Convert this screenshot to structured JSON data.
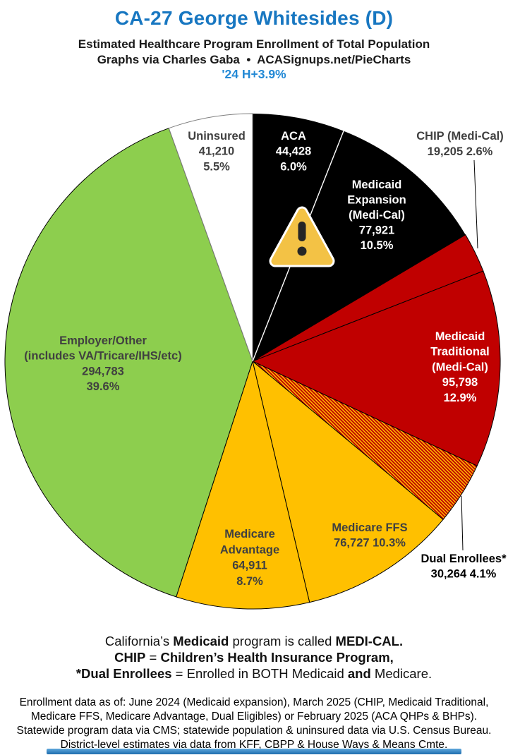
{
  "header": {
    "title": "CA-27 George Whitesides (D)",
    "subtitle1": "Estimated Healthcare Program Enrollment of Total Population",
    "subtitle2": "Graphs via Charles Gaba  •  ACASignups.net/PieCharts",
    "subtitle3": "'24 H+3.9%"
  },
  "colors": {
    "title_blue": "#1877C1",
    "trend_blue": "#2389D5",
    "subtitle_text": "#1a1a1a",
    "slice_red": "#C00000",
    "slice_yellow": "#FFC000",
    "slice_green": "#8DCE4E",
    "slice_black": "#000000",
    "slice_white": "#FFFFFF",
    "label_gray": "#404040",
    "warning_yellow": "#F3C245",
    "warning_glyph": "#262626",
    "bar_gradient_top": "#5FA8DC",
    "bar_gradient_bottom": "#1E6CAE"
  },
  "chart_data": {
    "type": "pie",
    "title": "Estimated Healthcare Program Enrollment of Total Population",
    "start_angle_deg": 0,
    "direction": "clockwise",
    "hatch_colors": [
      "#C00000",
      "#FFC000"
    ],
    "slices": [
      {
        "id": "aca",
        "name": "ACA",
        "value": 44428,
        "pct": 6.0,
        "fill": "#000000",
        "label_color": "#FFFFFF",
        "display_lines": [
          "ACA",
          "44,428",
          "6.0%"
        ],
        "label_outside": false
      },
      {
        "id": "expansion",
        "name": "Medicaid Expansion (Medi-Cal)",
        "value": 77921,
        "pct": 10.5,
        "fill": "#000000",
        "label_color": "#FFFFFF",
        "display_lines": [
          "Medicaid",
          "Expansion",
          "(Medi-Cal)",
          "77,921",
          "10.5%"
        ],
        "label_outside": false
      },
      {
        "id": "chip",
        "name": "CHIP (Medi-Cal)",
        "value": 19205,
        "pct": 2.6,
        "fill": "#C00000",
        "label_color": "#404040",
        "display_lines": [
          "CHIP (Medi-Cal)",
          "19,205 2.6%"
        ],
        "label_outside": true
      },
      {
        "id": "traditional",
        "name": "Medicaid Traditional (Medi-Cal)",
        "value": 95798,
        "pct": 12.9,
        "fill": "#C00000",
        "label_color": "#FFFFFF",
        "display_lines": [
          "Medicaid",
          "Traditional",
          "(Medi-Cal)",
          "95,798",
          "12.9%"
        ],
        "label_outside": false
      },
      {
        "id": "dual",
        "name": "Dual Enrollees*",
        "value": 30264,
        "pct": 4.1,
        "fill": "hatch",
        "label_color": "#000000",
        "display_lines": [
          "Dual Enrollees*",
          "30,264 4.1%"
        ],
        "label_outside": true
      },
      {
        "id": "ffs",
        "name": "Medicare FFS",
        "value": 76727,
        "pct": 10.3,
        "fill": "#FFC000",
        "label_color": "#404040",
        "display_lines": [
          "Medicare FFS",
          "76,727 10.3%"
        ],
        "label_outside": false
      },
      {
        "id": "advantage",
        "name": "Medicare Advantage",
        "value": 64911,
        "pct": 8.7,
        "fill": "#FFC000",
        "label_color": "#404040",
        "display_lines": [
          "Medicare",
          "Advantage",
          "64,911",
          "8.7%"
        ],
        "label_outside": false
      },
      {
        "id": "employer",
        "name": "Employer/Other (includes VA/Tricare/IHS/etc)",
        "value": 294783,
        "pct": 39.6,
        "fill": "#8DCE4E",
        "label_color": "#404040",
        "display_lines": [
          "Employer/Other",
          "(includes VA/Tricare/IHS/etc)",
          "294,783",
          "39.6%"
        ],
        "label_outside": false
      },
      {
        "id": "uninsured",
        "name": "Uninsured",
        "value": 41210,
        "pct": 5.5,
        "fill": "#FFFFFF",
        "label_color": "#404040",
        "display_lines": [
          "Uninsured",
          "41,210",
          "5.5%"
        ],
        "label_outside": false
      }
    ]
  },
  "annotations": {
    "warning_icon": "warning-triangle"
  },
  "footer": {
    "legend_lines": [
      [
        {
          "t": "California’s "
        },
        {
          "t": "Medicaid",
          "b": true
        },
        {
          "t": " program is called "
        },
        {
          "t": "MEDI-CAL.",
          "b": true
        }
      ],
      [
        {
          "t": "CHIP",
          "b": true
        },
        {
          "t": " = "
        },
        {
          "t": "Children’s Health Insurance Program,",
          "b": true
        }
      ],
      [
        {
          "t": "*Dual Enrollees",
          "b": true
        },
        {
          "t": " = Enrolled in BOTH Medicaid "
        },
        {
          "t": "and",
          "b": true
        },
        {
          "t": " Medicare."
        }
      ]
    ],
    "notes_lines": [
      "Enrollment data as of: June 2024 (Medicaid expansion), March 2025 (CHIP, Medicaid Traditional,",
      "Medicare FFS, Medicare Advantage, Dual Eligibles) or February 2025 (ACA QHPs & BHPs).",
      "Statewide program data via CMS; statewide population & uninsured data via U.S. Census Bureau.",
      "District-level estimates via data from KFF, CBPP & House Ways & Means Cmte."
    ]
  }
}
